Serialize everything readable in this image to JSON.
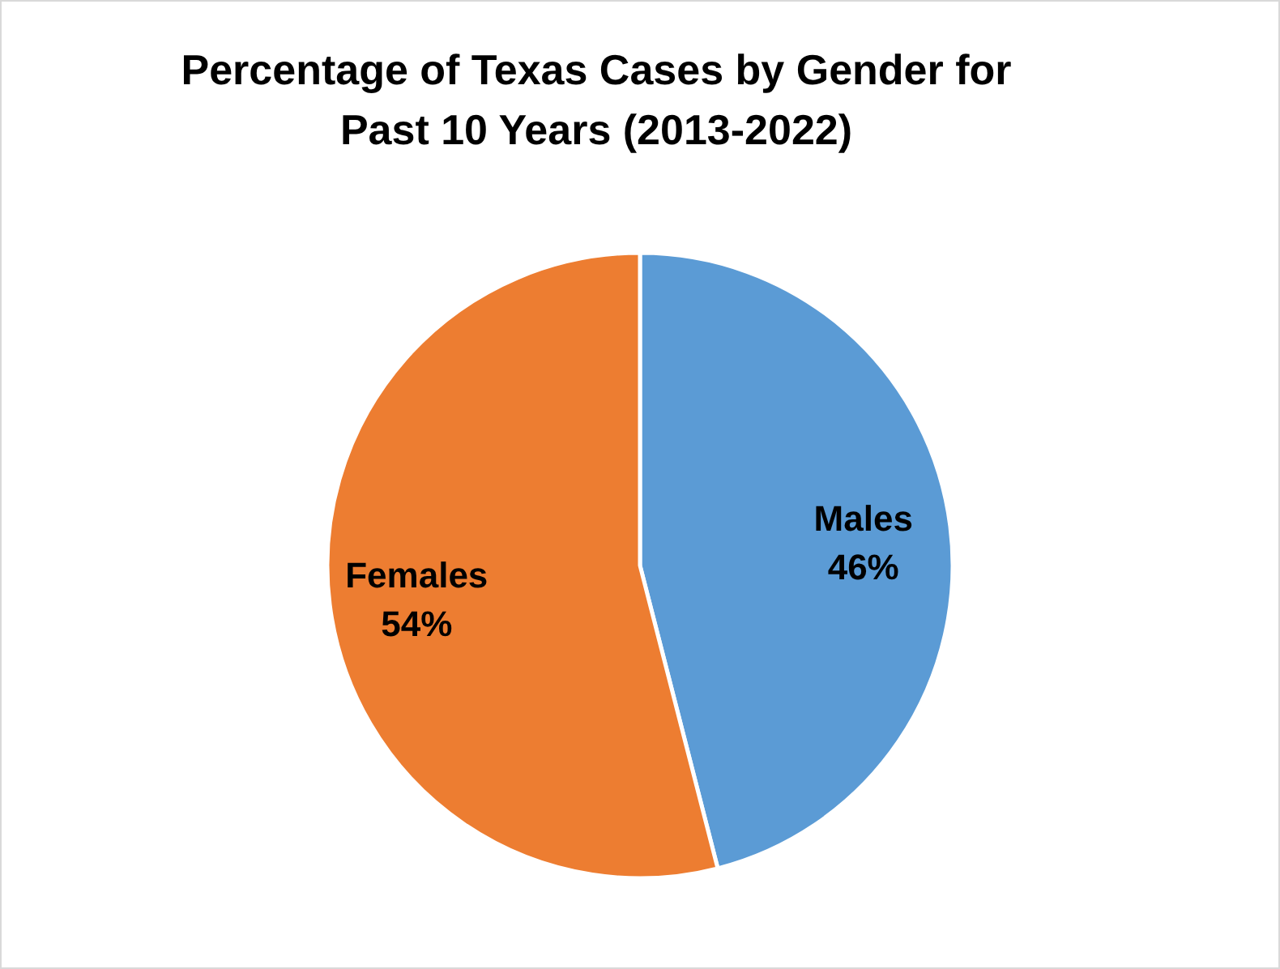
{
  "chart_data": {
    "type": "pie",
    "title": "Percentage of Texas Cases by Gender for Past 10 Years (2013-2022)",
    "categories": [
      "Males",
      "Females"
    ],
    "values": [
      46,
      54
    ],
    "value_labels": [
      "46%",
      "54%"
    ],
    "colors": [
      "#5b9bd5",
      "#ed7d31"
    ],
    "legend": false
  }
}
